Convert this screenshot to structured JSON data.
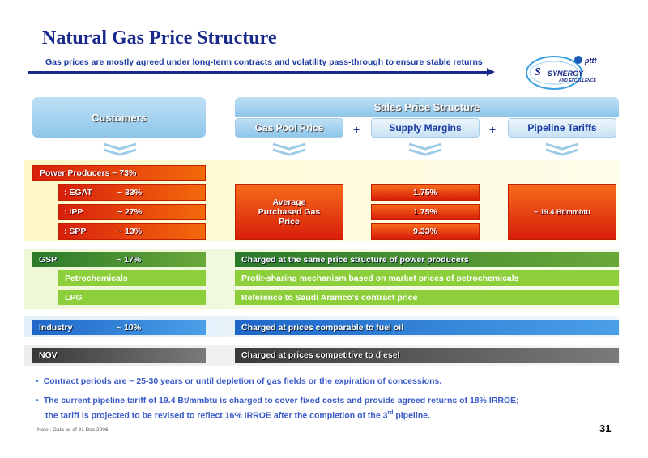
{
  "header": {
    "title": "Natural Gas Price Structure",
    "subtitle": "Gas prices are mostly agreed under long-term contracts and volatility pass-through to ensure stable returns",
    "logo_brand": "pttt",
    "logo_text": "SYNERGY",
    "logo_subtext": "AND EXCELLENCE"
  },
  "columns": {
    "customers": "Customers",
    "sales_price_structure": "Sales Price Structure",
    "gas_pool_price": "Gas Pool Price",
    "plus1": "+",
    "supply_margins": "Supply Margins",
    "plus2": "+",
    "pipeline_tariffs": "Pipeline Tariffs"
  },
  "power": {
    "label": "Power Producers ~ 73%",
    "rows": [
      {
        "name": ": EGAT",
        "share": "~ 33%",
        "margin": "1.75%"
      },
      {
        "name": ": IPP",
        "share": "~ 27%",
        "margin": "1.75%"
      },
      {
        "name": ": SPP",
        "share": "~ 13%",
        "margin": "9.33%"
      }
    ],
    "pool_price": "Average Purchased Gas Price",
    "tariff": "~ 19.4 Bt/mmbtu"
  },
  "gsp": {
    "label": "GSP",
    "share": "~ 17%",
    "desc": "Charged at the same price structure of power producers",
    "rows": [
      {
        "name": "Petrochemicals",
        "desc": "Profit-sharing mechanism based on market prices of petrochemicals"
      },
      {
        "name": "LPG",
        "desc": "Reference to Saudi Aramco's contract price"
      }
    ]
  },
  "industry": {
    "label": "Industry",
    "share": "~ 10%",
    "desc": "Charged at prices comparable to fuel oil"
  },
  "ngv": {
    "label": "NGV",
    "desc": "Charged at prices competitive to diesel"
  },
  "notes": {
    "bullet1": "Contract periods are ~ 25-30 years or until depletion of gas fields or the expiration of concessions.",
    "bullet2_line1": "The current pipeline tariff of 19.4 Bt/mmbtu is charged to cover fixed costs and provide agreed returns of 18% IRROE;",
    "bullet2_line2a": "the tariff is projected to be revised to reflect 16% IRROE after the completion of the 3",
    "bullet2_sup": "rd",
    "bullet2_line2b": " pipeline.",
    "footnote": "Note : Data as of 31 Dec 2006",
    "page": "31"
  },
  "colors": {
    "title": "#1a2a8c",
    "red": "#e0300c",
    "green": "#6aa83a",
    "blue": "#2a7ad8",
    "gray": "#555555"
  }
}
